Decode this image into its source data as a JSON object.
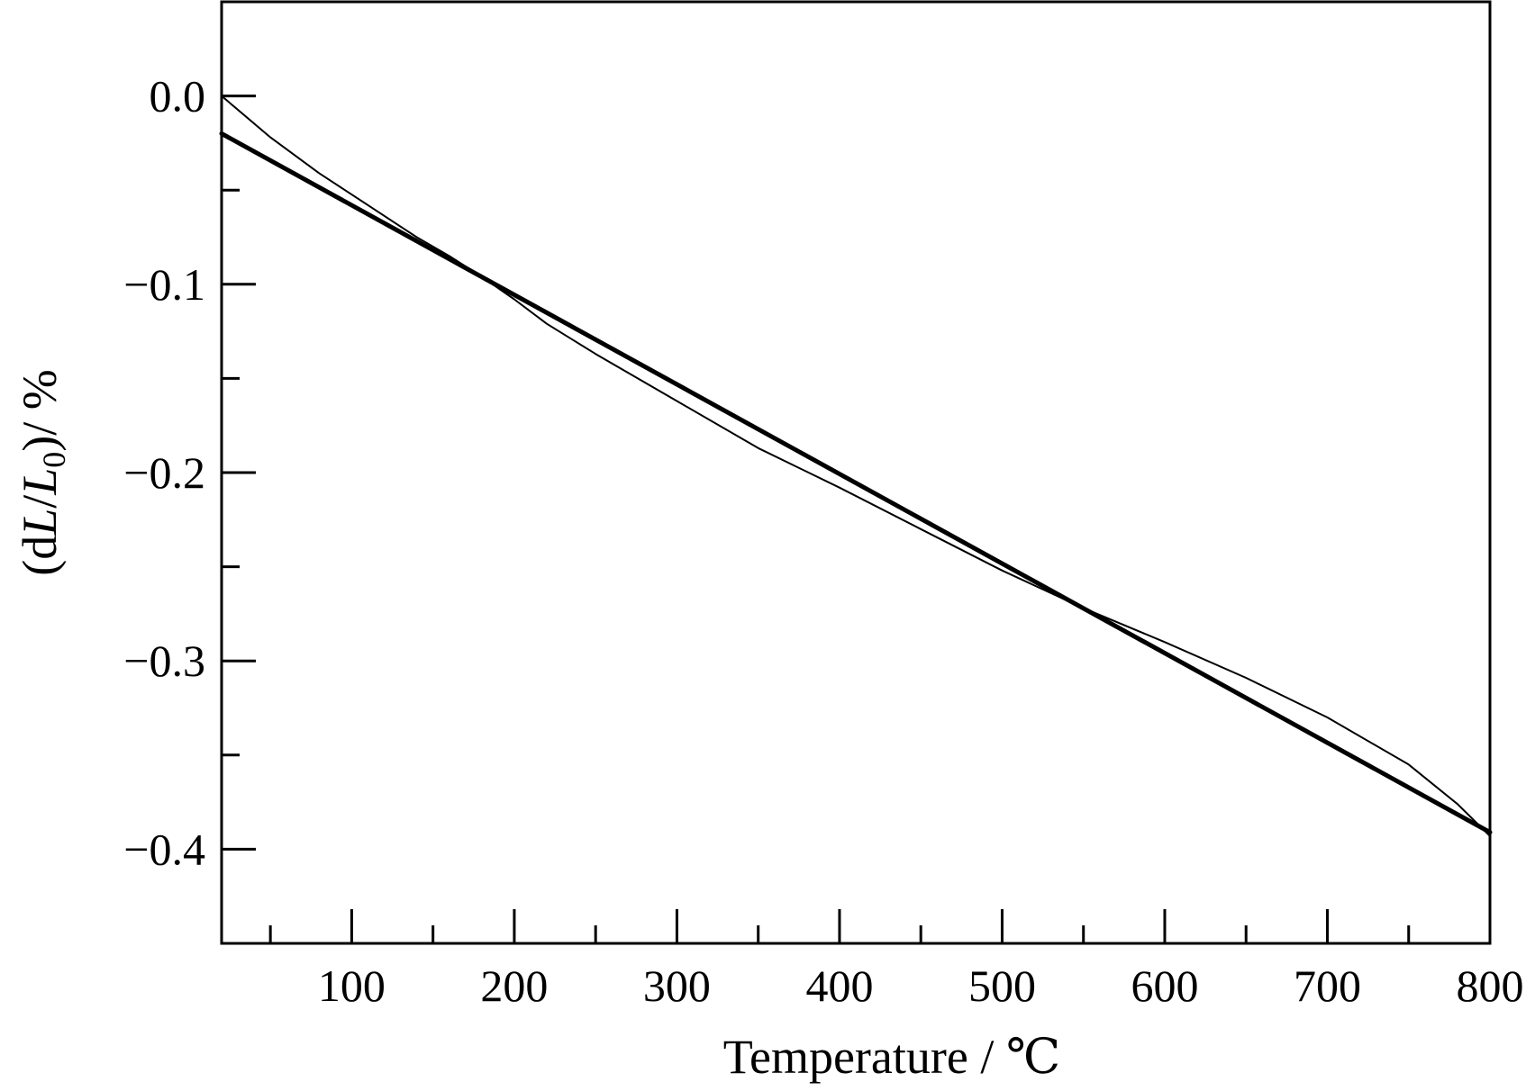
{
  "chart_data": {
    "type": "line",
    "title": "",
    "xlabel": "Temperature / ℃",
    "ylabel": {
      "open": "(d",
      "L1": "L",
      "slash": "/",
      "L2": "L",
      "sub": "0",
      "close": ")/ %"
    },
    "xlim": [
      20,
      800
    ],
    "ylim": [
      -0.45,
      0.05
    ],
    "x_ticks": [
      100,
      200,
      300,
      400,
      500,
      600,
      700,
      800
    ],
    "x_tick_labels": [
      "100",
      "200",
      "300",
      "400",
      "500",
      "600",
      "700",
      "800"
    ],
    "x_minor_ticks": [
      50,
      150,
      250,
      350,
      450,
      550,
      650,
      750
    ],
    "y_ticks": [
      0.0,
      -0.1,
      -0.2,
      -0.3,
      -0.4
    ],
    "y_tick_labels": [
      "0.0",
      "−0.1",
      "−0.2",
      "−0.3",
      "−0.4"
    ],
    "y_minor_ticks": [
      -0.05,
      -0.15,
      -0.25,
      -0.35
    ],
    "grid": false,
    "legend": "none",
    "series": [
      {
        "style": "thin",
        "color": "#000000",
        "x": [
          20,
          50,
          80,
          110,
          140,
          160,
          180,
          200,
          220,
          250,
          300,
          350,
          400,
          450,
          500,
          550,
          600,
          650,
          700,
          750,
          780,
          800
        ],
        "y": [
          0.0,
          -0.022,
          -0.041,
          -0.058,
          -0.075,
          -0.085,
          -0.096,
          -0.108,
          -0.121,
          -0.137,
          -0.162,
          -0.187,
          -0.208,
          -0.23,
          -0.252,
          -0.272,
          -0.29,
          -0.309,
          -0.33,
          -0.355,
          -0.376,
          -0.393
        ]
      },
      {
        "style": "thick",
        "color": "#000000",
        "x": [
          20,
          800
        ],
        "y": [
          -0.02,
          -0.391
        ]
      }
    ]
  }
}
